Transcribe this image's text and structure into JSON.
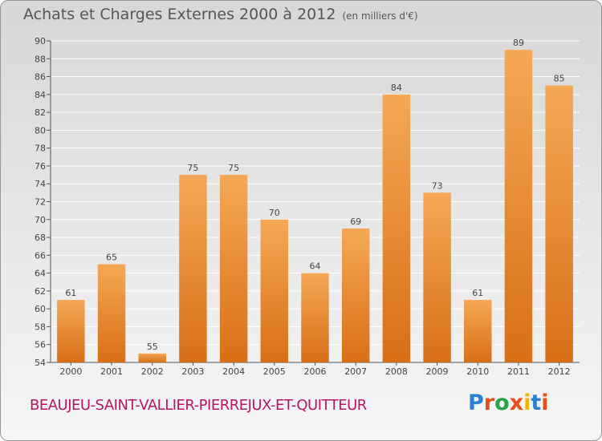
{
  "header": {
    "title": "Achats et Charges Externes 2000 à 2012",
    "unit": "(en milliers d'€)"
  },
  "footer": {
    "commune": "BEAUJEU-SAINT-VALLIER-PIERREJUX-ET-QUITTEUR",
    "logo": "Proxiti",
    "logo_colors": [
      "#2d7fd1",
      "#e94e1b",
      "#2aa34a",
      "#e94e1b",
      "#f2b705",
      "#2d7fd1",
      "#e94e1b"
    ]
  },
  "colors": {
    "bar_light": "#f5a855",
    "bar_dark": "#d86f17",
    "grid": "#ffffff",
    "background_top": "#d7d7d7",
    "background_bottom": "#f6f6f6"
  },
  "chart_data": {
    "type": "bar",
    "title": "Achats et Charges Externes 2000 à 2012",
    "subtitle": "(en milliers d'€)",
    "xlabel": "",
    "ylabel": "",
    "categories": [
      "2000",
      "2001",
      "2002",
      "2003",
      "2004",
      "2005",
      "2006",
      "2007",
      "2008",
      "2009",
      "2010",
      "2011",
      "2012"
    ],
    "values": [
      61,
      65,
      55,
      75,
      75,
      70,
      64,
      69,
      84,
      73,
      61,
      89,
      85
    ],
    "ylim": [
      54,
      90
    ],
    "yticks": [
      54,
      56,
      58,
      60,
      62,
      64,
      66,
      68,
      70,
      72,
      74,
      76,
      78,
      80,
      82,
      84,
      86,
      88,
      90
    ],
    "grid": true,
    "data_labels": true
  }
}
